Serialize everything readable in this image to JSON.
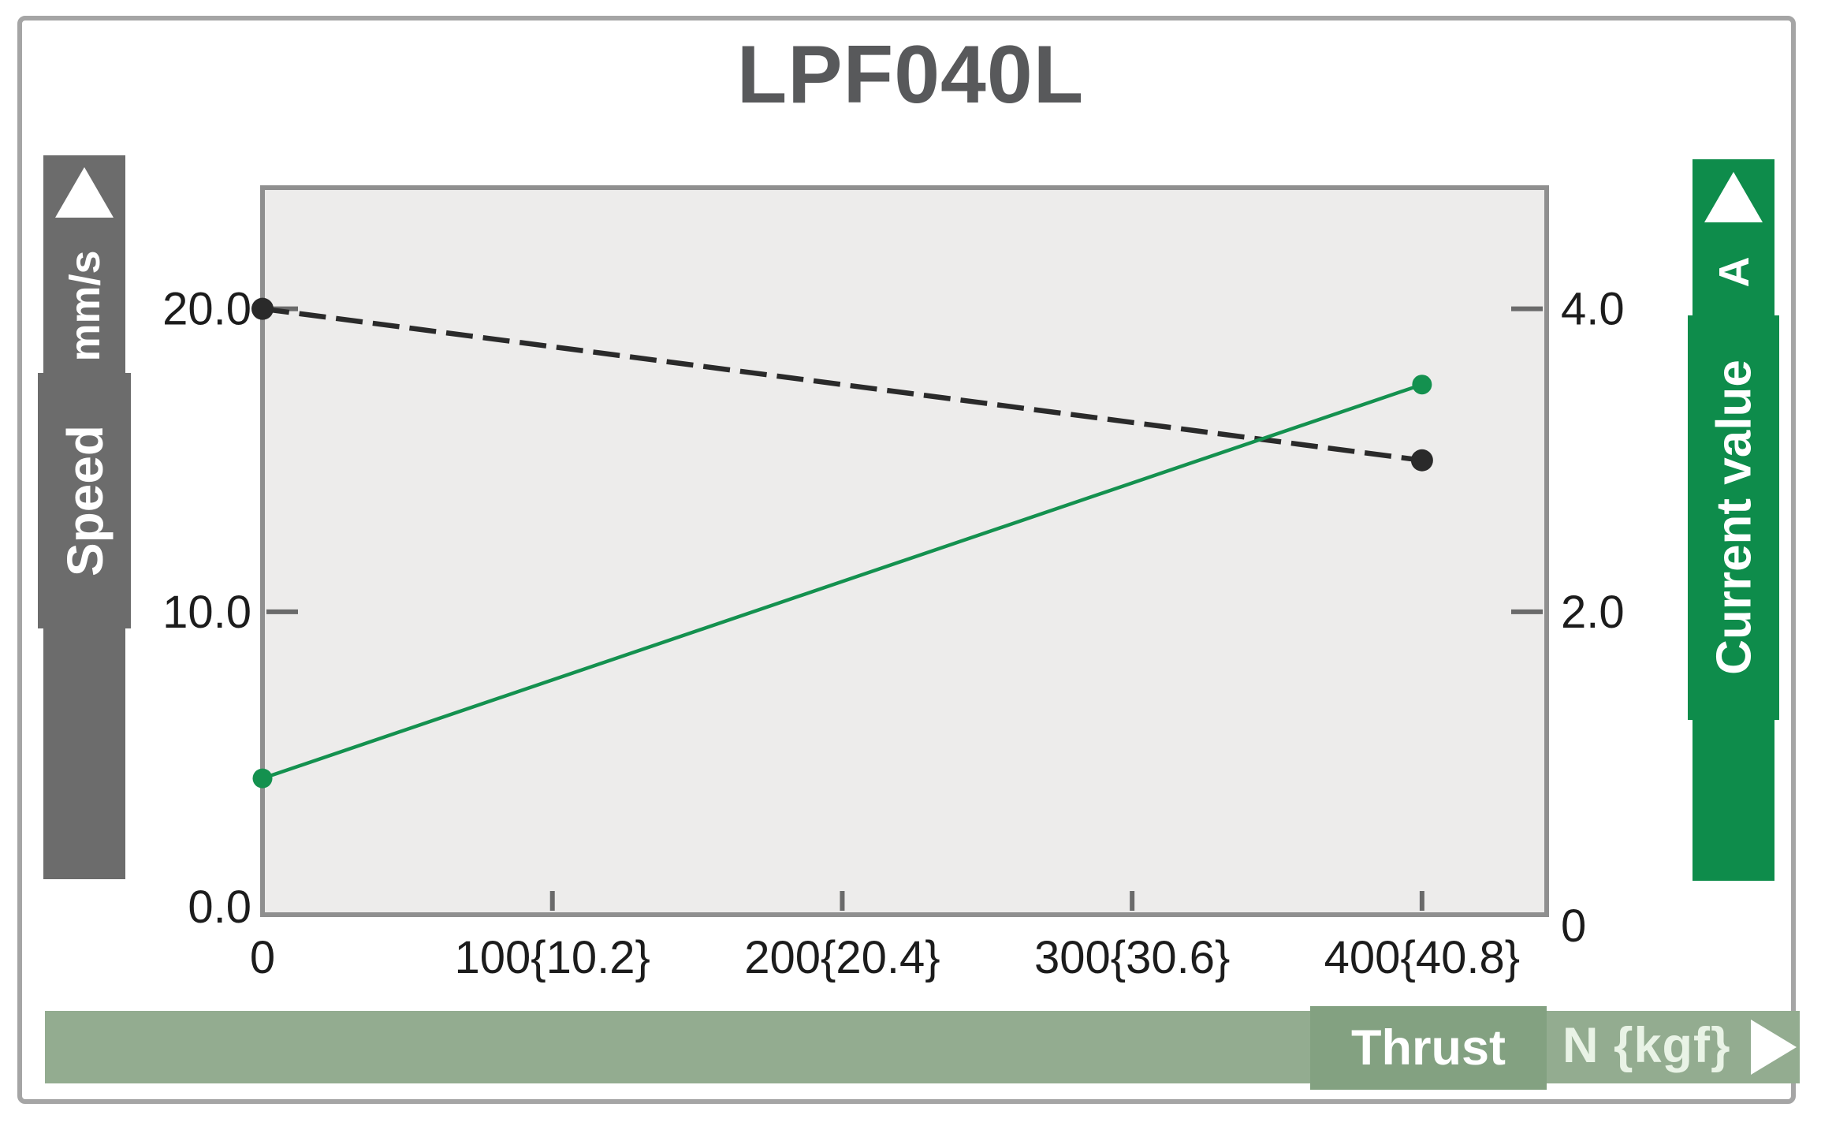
{
  "title": "LPF040L",
  "banners": {
    "speed": {
      "label": "Speed",
      "unit": "mm/s"
    },
    "current": {
      "label": "Current value",
      "unit": "A"
    },
    "thrust": {
      "label": "Thrust",
      "unit": "N {kgf}"
    }
  },
  "colors": {
    "title_color": "#58595b",
    "speed_banner": "#6c6c6c",
    "current_banner": "#0e8c4b",
    "thrust_banner": "#93ac90",
    "thrust_box": "#83a181",
    "thrust_unit_color": "#e9f3e6",
    "plot_bg": "#edeceb",
    "axis_color": "#8f8f8f",
    "tick_color": "#6a6a6a",
    "speed_line": "#2a2a2a",
    "current_line": "#14914f"
  },
  "chart_data": {
    "type": "line",
    "title": "LPF040L",
    "grid": false,
    "plot_bg": "#edeceb",
    "x_axis": {
      "label": "Thrust",
      "unit": "N {kgf}",
      "range": [
        0,
        443
      ],
      "tick_values": [
        0,
        100,
        200,
        300,
        400
      ],
      "tick_labels": [
        "0",
        "100{10.2}",
        "200{20.4}",
        "300{30.6}",
        "400{40.8}"
      ]
    },
    "y_axis_left": {
      "label": "Speed",
      "unit": "mm/s",
      "range": [
        0,
        24
      ],
      "tick_values": [
        0,
        10,
        20
      ],
      "tick_labels": [
        "0.0",
        "10.0",
        "20.0"
      ]
    },
    "y_axis_right": {
      "label": "Current value",
      "unit": "A",
      "range": [
        0,
        4.8
      ],
      "tick_values": [
        0,
        2,
        4
      ],
      "tick_labels": [
        "0",
        "2.0",
        "4.0"
      ]
    },
    "series": [
      {
        "name": "Speed",
        "axis": "left",
        "style": "dashed",
        "color": "#2a2a2a",
        "points": [
          [
            0,
            20.0
          ],
          [
            400,
            15.0
          ]
        ]
      },
      {
        "name": "Current value",
        "axis": "right",
        "style": "solid",
        "color": "#14914f",
        "points": [
          [
            0,
            0.9
          ],
          [
            400,
            3.5
          ]
        ]
      }
    ]
  }
}
